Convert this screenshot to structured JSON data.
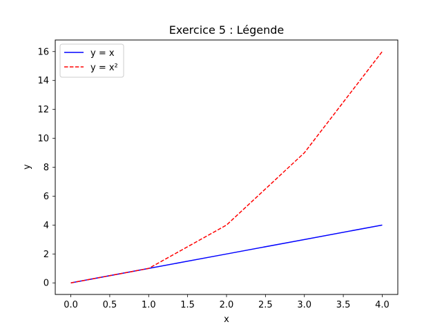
{
  "chart_data": {
    "type": "line",
    "title": "Exercice 5 : Légende",
    "xlabel": "x",
    "ylabel": "y",
    "xlim": [
      -0.2,
      4.2
    ],
    "ylim": [
      -0.8,
      16.8
    ],
    "xticks": [
      0.0,
      0.5,
      1.0,
      1.5,
      2.0,
      2.5,
      3.0,
      3.5,
      4.0
    ],
    "xtick_labels": [
      "0.0",
      "0.5",
      "1.0",
      "1.5",
      "2.0",
      "2.5",
      "3.0",
      "3.5",
      "4.0"
    ],
    "yticks": [
      0,
      2,
      4,
      6,
      8,
      10,
      12,
      14,
      16
    ],
    "ytick_labels": [
      "0",
      "2",
      "4",
      "6",
      "8",
      "10",
      "12",
      "14",
      "16"
    ],
    "grid": false,
    "legend_position": "top-left",
    "series": [
      {
        "name": "y = x",
        "x": [
          0,
          1,
          2,
          3,
          4
        ],
        "values": [
          0,
          1,
          2,
          3,
          4
        ],
        "color": "#0000ff",
        "style": "solid"
      },
      {
        "name": "y = x²",
        "x": [
          0,
          1,
          2,
          3,
          4
        ],
        "values": [
          0,
          1,
          4,
          9,
          16
        ],
        "color": "#ff0000",
        "style": "dashed"
      }
    ]
  }
}
